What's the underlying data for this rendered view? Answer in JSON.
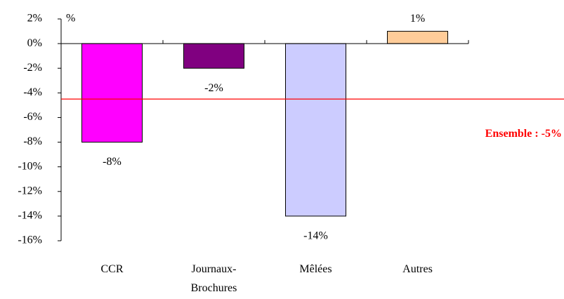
{
  "chart_data": {
    "type": "bar",
    "unit_label": "%",
    "categories": [
      "CCR",
      "Journaux-Brochures",
      "Mêlées",
      "Autres"
    ],
    "values": [
      -8,
      -2,
      -14,
      1
    ],
    "value_labels": [
      "-8%",
      "-2%",
      "-14%",
      "1%"
    ],
    "colors": [
      "#ff00ff",
      "#800080",
      "#ccccff",
      "#ffcc99"
    ],
    "ylim": [
      -16,
      2
    ],
    "yticks": [
      {
        "value": 2,
        "label": "2%"
      },
      {
        "value": 0,
        "label": "0%"
      },
      {
        "value": -2,
        "label": "-2%"
      },
      {
        "value": -4,
        "label": "-4%"
      },
      {
        "value": -6,
        "label": "-6%"
      },
      {
        "value": -8,
        "label": "-8%"
      },
      {
        "value": -10,
        "label": "-10%"
      },
      {
        "value": -12,
        "label": "-12%"
      },
      {
        "value": -14,
        "label": "-14%"
      },
      {
        "value": -16,
        "label": "-16%"
      }
    ],
    "reference_line": {
      "value": -4.5,
      "label": "Ensemble : -5%",
      "color": "#ff0000"
    }
  }
}
